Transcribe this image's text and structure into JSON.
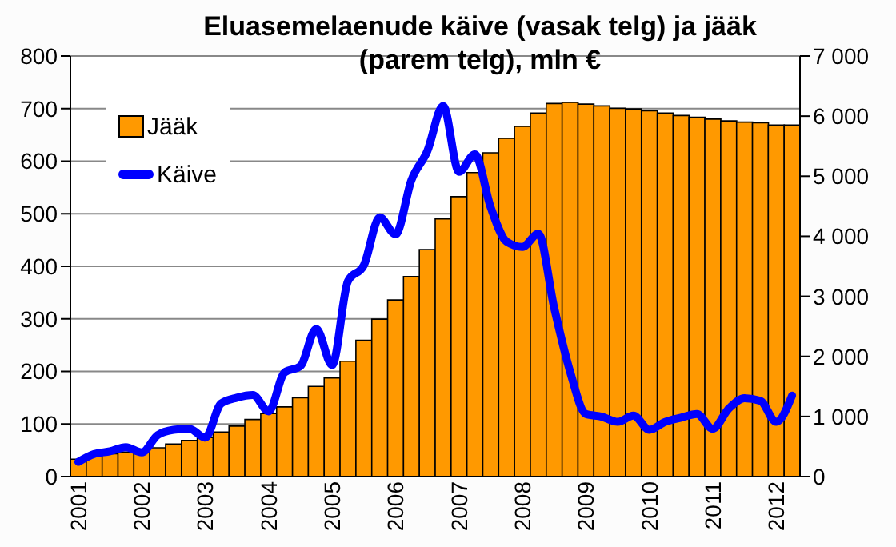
{
  "chart_data": {
    "type": "bar",
    "title": "Eluasemelaenude käive (vasak telg) ja jääk (parem telg), mln €",
    "categories": [
      "2001",
      null,
      null,
      null,
      "2002",
      null,
      null,
      null,
      "2003",
      null,
      null,
      null,
      "2004",
      null,
      null,
      null,
      "2005",
      null,
      null,
      null,
      "2006",
      null,
      null,
      null,
      "2007",
      null,
      null,
      null,
      "2008",
      null,
      null,
      null,
      "2009",
      null,
      null,
      null,
      "2010",
      null,
      null,
      null,
      "2011",
      null,
      null,
      null,
      "2012",
      null
    ],
    "series": [
      {
        "name": "Jääk",
        "axis": "y2",
        "color": "#ff9900",
        "values": [
          290,
          350,
          380,
          410,
          440,
          480,
          540,
          600,
          650,
          740,
          840,
          950,
          1050,
          1160,
          1310,
          1500,
          1640,
          1920,
          2270,
          2620,
          2940,
          3330,
          3780,
          4290,
          4660,
          5060,
          5390,
          5630,
          5830,
          6050,
          6210,
          6230,
          6200,
          6170,
          6130,
          6120,
          6090,
          6050,
          6010,
          5980,
          5950,
          5920,
          5900,
          5890,
          5850,
          5850
        ]
      },
      {
        "name": "Käive",
        "type": "line",
        "color": "#0000ff",
        "values": [
          28,
          43,
          48,
          56,
          46,
          79,
          89,
          91,
          74,
          139,
          150,
          155,
          124,
          198,
          210,
          281,
          212,
          372,
          402,
          493,
          461,
          564,
          619,
          705,
          580,
          613,
          512,
          447,
          437,
          462,
          321,
          200,
          119,
          114,
          104,
          116,
          89,
          104,
          112,
          119,
          91,
          129,
          149,
          144,
          104,
          154
        ]
      }
    ],
    "ylim": [
      0,
      800
    ],
    "yticks": [
      0,
      100,
      200,
      300,
      400,
      500,
      600,
      700,
      800
    ],
    "y2lim": [
      0,
      7000
    ],
    "y2ticks": [
      0,
      {
        "value": 1000,
        "label": "1 000"
      },
      {
        "value": 2000,
        "label": "2 000"
      },
      {
        "value": 3000,
        "label": "3 000"
      },
      {
        "value": 4000,
        "label": "4 000"
      },
      {
        "value": 5000,
        "label": "5 000"
      },
      {
        "value": 6000,
        "label": "6 000"
      },
      {
        "value": 7000,
        "label": "7 000"
      }
    ],
    "grid": "y",
    "legend": "top left",
    "marker": "none",
    "line_style": "solid"
  }
}
